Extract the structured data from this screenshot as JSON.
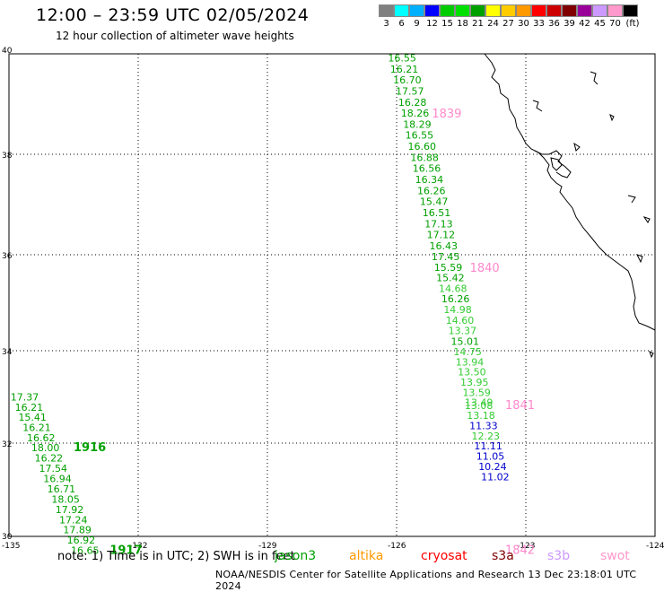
{
  "title": "12:00 – 23:59 UTC 02/05/2024",
  "subtitle": "12 hour collection of altimeter wave heights",
  "color_scale": {
    "colors": [
      "#808080",
      "#00ffff",
      "#00b0ff",
      "#0000ff",
      "#00cc00",
      "#00e000",
      "#00a000",
      "#ffff00",
      "#ffcc00",
      "#ff9900",
      "#ff0000",
      "#cc0000",
      "#800000",
      "#990099",
      "#cc99ff",
      "#ff99cc",
      "#000000"
    ],
    "labels": [
      "3",
      "6",
      "9",
      "12",
      "15",
      "18",
      "21",
      "24",
      "27",
      "30",
      "33",
      "36",
      "39",
      "42",
      "45",
      "70",
      "(ft)"
    ]
  },
  "axes": {
    "lon_ticks": [
      "-135",
      "-132",
      "-129",
      "-126",
      "-123",
      "-124"
    ],
    "lat_ticks": [
      "40",
      "38",
      "36",
      "34",
      "32",
      "30"
    ]
  },
  "track_east": [
    {
      "lat": 39.92,
      "lon": -126.2,
      "v": "16.55",
      "c": "#00a000"
    },
    {
      "lat": 39.7,
      "lon": -126.15,
      "v": "16.21",
      "c": "#00a000"
    },
    {
      "lat": 39.48,
      "lon": -126.08,
      "v": "16.70",
      "c": "#00a000"
    },
    {
      "lat": 39.26,
      "lon": -126.02,
      "v": "17.57",
      "c": "#00a000"
    },
    {
      "lat": 39.04,
      "lon": -125.96,
      "v": "16.28",
      "c": "#00a000"
    },
    {
      "lat": 38.82,
      "lon": -125.9,
      "v": "18.26",
      "c": "#00a000"
    },
    {
      "lat": 38.6,
      "lon": -125.85,
      "v": "18.29",
      "c": "#00a000"
    },
    {
      "lat": 38.38,
      "lon": -125.8,
      "v": "16.55",
      "c": "#00a000"
    },
    {
      "lat": 38.16,
      "lon": -125.74,
      "v": "16.60",
      "c": "#00a000"
    },
    {
      "lat": 37.94,
      "lon": -125.68,
      "v": "16.88",
      "c": "#00a000"
    },
    {
      "lat": 37.72,
      "lon": -125.63,
      "v": "16.56",
      "c": "#00a000"
    },
    {
      "lat": 37.5,
      "lon": -125.57,
      "v": "16.34",
      "c": "#00a000"
    },
    {
      "lat": 37.28,
      "lon": -125.52,
      "v": "16.26",
      "c": "#00a000"
    },
    {
      "lat": 37.06,
      "lon": -125.46,
      "v": "15.47",
      "c": "#00a000"
    },
    {
      "lat": 36.84,
      "lon": -125.4,
      "v": "16.51",
      "c": "#00a000"
    },
    {
      "lat": 36.62,
      "lon": -125.35,
      "v": "17.13",
      "c": "#00a000"
    },
    {
      "lat": 36.4,
      "lon": -125.3,
      "v": "17.12",
      "c": "#00a000"
    },
    {
      "lat": 36.18,
      "lon": -125.24,
      "v": "16.43",
      "c": "#00a000"
    },
    {
      "lat": 35.96,
      "lon": -125.19,
      "v": "17.45",
      "c": "#00a000"
    },
    {
      "lat": 35.74,
      "lon": -125.13,
      "v": "15.59",
      "c": "#00a000"
    },
    {
      "lat": 35.52,
      "lon": -125.08,
      "v": "15.42",
      "c": "#00a000"
    },
    {
      "lat": 35.3,
      "lon": -125.02,
      "v": "14.68",
      "c": "#33cc33"
    },
    {
      "lat": 35.08,
      "lon": -124.96,
      "v": "16.26",
      "c": "#00a000"
    },
    {
      "lat": 34.86,
      "lon": -124.91,
      "v": "14.98",
      "c": "#33cc33"
    },
    {
      "lat": 34.64,
      "lon": -124.86,
      "v": "14.60",
      "c": "#33cc33"
    },
    {
      "lat": 34.42,
      "lon": -124.8,
      "v": "13.37",
      "c": "#33cc33"
    },
    {
      "lat": 34.2,
      "lon": -124.74,
      "v": "15.01",
      "c": "#00a000"
    },
    {
      "lat": 33.98,
      "lon": -124.68,
      "v": "14.75",
      "c": "#33cc33"
    },
    {
      "lat": 33.76,
      "lon": -124.63,
      "v": "13.94",
      "c": "#33cc33"
    },
    {
      "lat": 33.54,
      "lon": -124.58,
      "v": "13.50",
      "c": "#33cc33"
    },
    {
      "lat": 33.32,
      "lon": -124.52,
      "v": "13.95",
      "c": "#33cc33"
    },
    {
      "lat": 33.1,
      "lon": -124.47,
      "v": "13.59",
      "c": "#33cc33"
    },
    {
      "lat": 32.88,
      "lon": -124.42,
      "v": "13.49",
      "c": "#33cc33"
    },
    {
      "lat": 32.82,
      "lon": -124.42,
      "v": "13.08",
      "c": "#33cc33"
    },
    {
      "lat": 32.6,
      "lon": -124.37,
      "v": "13.18",
      "c": "#33cc33"
    },
    {
      "lat": 32.38,
      "lon": -124.31,
      "v": "11.33",
      "c": "#0000cc"
    },
    {
      "lat": 32.16,
      "lon": -124.26,
      "v": "12.23",
      "c": "#33cc33"
    },
    {
      "lat": 31.94,
      "lon": -124.2,
      "v": "11.11",
      "c": "#0000cc"
    },
    {
      "lat": 31.72,
      "lon": -124.15,
      "v": "11.05",
      "c": "#0000cc"
    },
    {
      "lat": 31.5,
      "lon": -124.1,
      "v": "10.24",
      "c": "#0000cc"
    },
    {
      "lat": 31.28,
      "lon": -124.04,
      "v": "11.02",
      "c": "#0000cc"
    }
  ],
  "track_west": [
    {
      "lat": 33.0,
      "lon": -134.9,
      "v": "17.37",
      "c": "#00a000"
    },
    {
      "lat": 32.78,
      "lon": -134.8,
      "v": "16.21",
      "c": "#00a000"
    },
    {
      "lat": 32.56,
      "lon": -134.72,
      "v": "15.41",
      "c": "#00a000"
    },
    {
      "lat": 32.34,
      "lon": -134.62,
      "v": "16.21",
      "c": "#00a000"
    },
    {
      "lat": 32.12,
      "lon": -134.52,
      "v": "16.62",
      "c": "#00a000"
    },
    {
      "lat": 31.9,
      "lon": -134.42,
      "v": "18.00",
      "c": "#00a000"
    },
    {
      "lat": 31.68,
      "lon": -134.34,
      "v": "16.22",
      "c": "#00a000"
    },
    {
      "lat": 31.46,
      "lon": -134.24,
      "v": "17.54",
      "c": "#00a000"
    },
    {
      "lat": 31.24,
      "lon": -134.14,
      "v": "16.94",
      "c": "#00a000"
    },
    {
      "lat": 31.02,
      "lon": -134.05,
      "v": "16.71",
      "c": "#00a000"
    },
    {
      "lat": 30.8,
      "lon": -133.95,
      "v": "18.05",
      "c": "#00a000"
    },
    {
      "lat": 30.58,
      "lon": -133.86,
      "v": "17.92",
      "c": "#00a000"
    },
    {
      "lat": 30.36,
      "lon": -133.77,
      "v": "17.24",
      "c": "#00a000"
    },
    {
      "lat": 30.14,
      "lon": -133.68,
      "v": "17.89",
      "c": "#00a000"
    },
    {
      "lat": 29.92,
      "lon": -133.59,
      "v": "16.92",
      "c": "#00a000"
    },
    {
      "lat": 29.7,
      "lon": -133.5,
      "v": "16.65",
      "c": "#00a000"
    }
  ],
  "time_labels": [
    {
      "lat": 38.8,
      "lon": -125.18,
      "t": "1839",
      "c": "#ff88cc"
    },
    {
      "lat": 35.72,
      "lon": -124.3,
      "t": "1840",
      "c": "#ff88cc"
    },
    {
      "lat": 32.82,
      "lon": -123.48,
      "t": "1841",
      "c": "#ff88cc"
    },
    {
      "lat": 29.7,
      "lon": -123.48,
      "t": "1842",
      "c": "#ff88cc"
    },
    {
      "lat": 31.9,
      "lon": -133.5,
      "t": "1916",
      "c": "#00a000"
    },
    {
      "lat": 29.7,
      "lon": -132.66,
      "t": "1917",
      "c": "#00a000"
    }
  ],
  "note": "note:  1) Time is in UTC; 2) SWH is in feet",
  "missions": [
    {
      "name": "jason3",
      "c": "#00a000"
    },
    {
      "name": "altika",
      "c": "#ff9900"
    },
    {
      "name": "cryosat",
      "c": "#ff0000"
    },
    {
      "name": "s3a",
      "c": "#800000"
    },
    {
      "name": "s3b",
      "c": "#cc99ff"
    },
    {
      "name": "swot",
      "c": "#ff99cc"
    }
  ],
  "footer": "NOAA/NESDIS Center for Satellite Applications and Research    13 Dec 23:18:01 UTC 2024"
}
